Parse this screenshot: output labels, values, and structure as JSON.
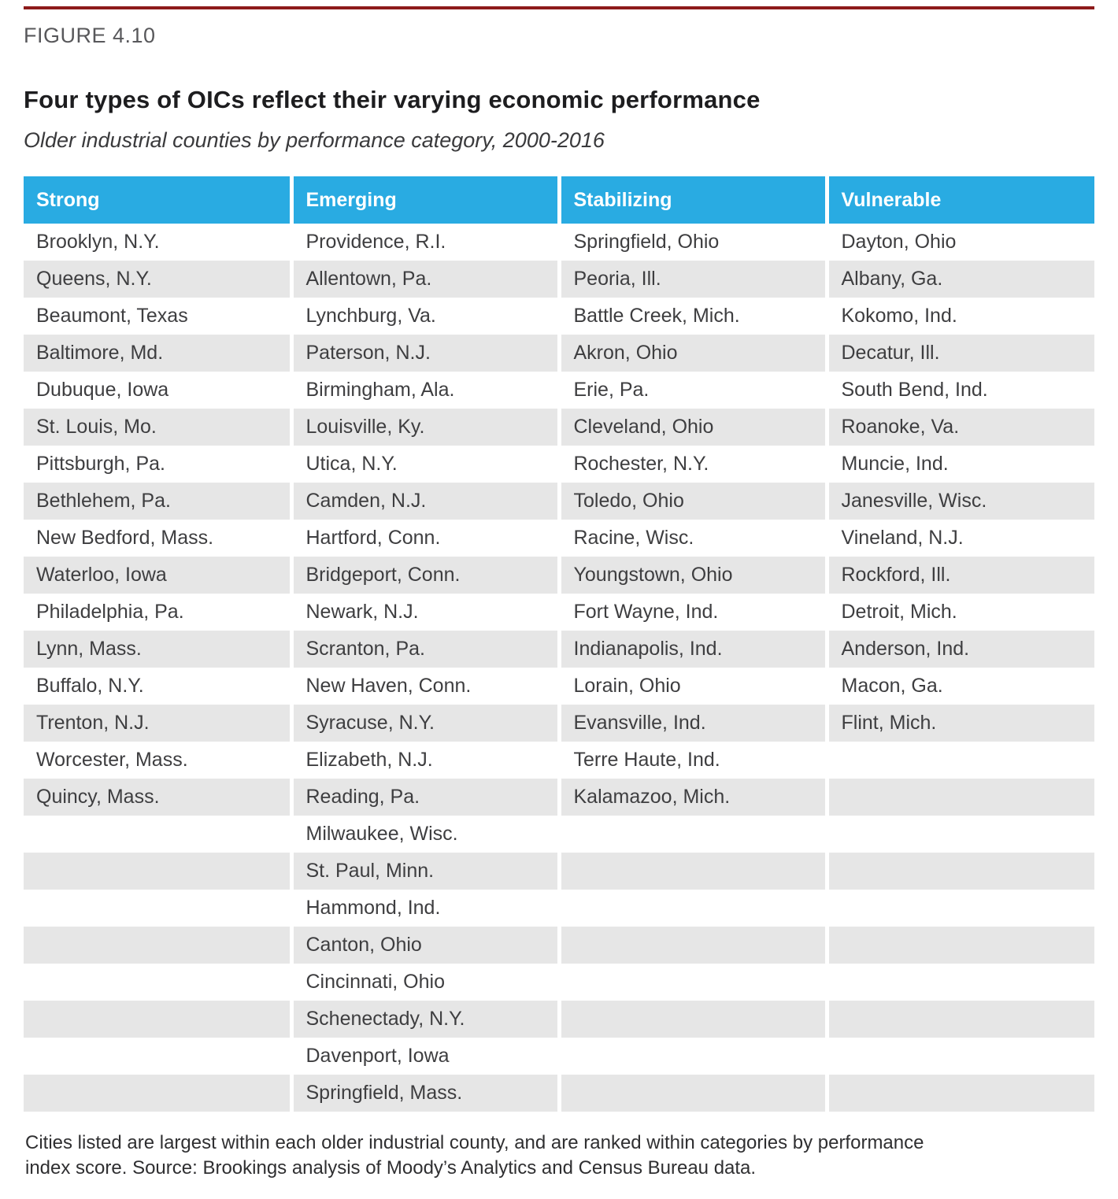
{
  "figure": {
    "label": "FIGURE 4.10",
    "title": "Four types of OICs reflect their varying economic performance",
    "subtitle": "Older industrial counties by performance category, 2000-2016",
    "note": "Cities listed are largest within each older industrial county, and are ranked within categories by performance index score. Source: Brookings analysis of Moody’s Analytics and Census Bureau data."
  },
  "colors": {
    "header_blue": "#29abe2",
    "row_stripe_gray": "#e6e6e6",
    "top_rule_red": "#8d1a1a",
    "header_text": "#ffffff",
    "body_text": "#3e3e40"
  },
  "chart_data": {
    "type": "table",
    "title": "Four types of OICs reflect their varying economic performance",
    "subtitle": "Older industrial counties by performance category, 2000-2016",
    "columns": [
      {
        "header": "Strong",
        "cities": [
          "Brooklyn, N.Y.",
          "Queens, N.Y.",
          "Beaumont, Texas",
          "Baltimore, Md.",
          "Dubuque, Iowa",
          "St. Louis, Mo.",
          "Pittsburgh, Pa.",
          "Bethlehem, Pa.",
          "New Bedford, Mass.",
          "Waterloo, Iowa",
          "Philadelphia, Pa.",
          "Lynn, Mass.",
          "Buffalo, N.Y.",
          "Trenton, N.J.",
          "Worcester, Mass.",
          "Quincy, Mass."
        ]
      },
      {
        "header": "Emerging",
        "cities": [
          "Providence, R.I.",
          "Allentown, Pa.",
          "Lynchburg, Va.",
          "Paterson, N.J.",
          "Birmingham, Ala.",
          "Louisville, Ky.",
          "Utica, N.Y.",
          "Camden, N.J.",
          "Hartford, Conn.",
          "Bridgeport, Conn.",
          "Newark, N.J.",
          "Scranton, Pa.",
          "New Haven, Conn.",
          "Syracuse, N.Y.",
          "Elizabeth, N.J.",
          "Reading, Pa.",
          "Milwaukee, Wisc.",
          "St. Paul, Minn.",
          "Hammond, Ind.",
          "Canton, Ohio",
          "Cincinnati, Ohio",
          "Schenectady, N.Y.",
          "Davenport, Iowa",
          "Springfield, Mass."
        ]
      },
      {
        "header": "Stabilizing",
        "cities": [
          "Springfield, Ohio",
          "Peoria, Ill.",
          "Battle Creek, Mich.",
          "Akron, Ohio",
          "Erie, Pa.",
          "Cleveland, Ohio",
          "Rochester, N.Y.",
          "Toledo, Ohio",
          "Racine, Wisc.",
          "Youngstown, Ohio",
          "Fort Wayne, Ind.",
          "Indianapolis, Ind.",
          "Lorain, Ohio",
          "Evansville, Ind.",
          "Terre Haute, Ind.",
          "Kalamazoo, Mich."
        ]
      },
      {
        "header": "Vulnerable",
        "cities": [
          "Dayton, Ohio",
          "Albany, Ga.",
          "Kokomo, Ind.",
          "Decatur, Ill.",
          "South Bend, Ind.",
          "Roanoke, Va.",
          "Muncie, Ind.",
          "Janesville, Wisc.",
          "Vineland, N.J.",
          "Rockford, Ill.",
          "Detroit, Mich.",
          "Anderson, Ind.",
          "Macon, Ga.",
          "Flint, Mich."
        ]
      }
    ]
  }
}
